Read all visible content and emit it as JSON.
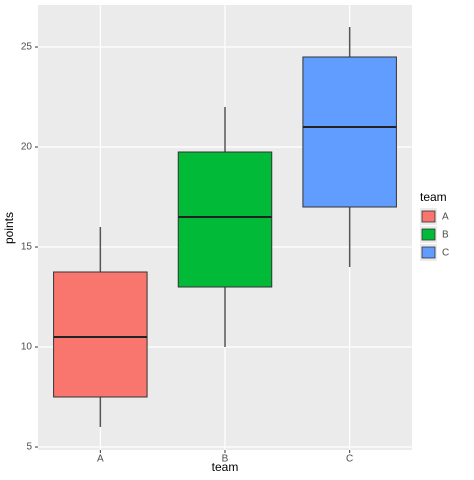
{
  "chart_data": {
    "type": "box",
    "x_label": "team",
    "y_label": "points",
    "legend_title": "team",
    "categories": [
      "A",
      "B",
      "C"
    ],
    "colors": [
      "#f8766d",
      "#00ba38",
      "#619cff"
    ],
    "boxes": [
      {
        "min": 6,
        "q1": 7.5,
        "median": 10.5,
        "q3": 13.75,
        "max": 16
      },
      {
        "min": 10,
        "q1": 13,
        "median": 16.5,
        "q3": 19.75,
        "max": 22
      },
      {
        "min": 14,
        "q1": 17,
        "median": 21,
        "q3": 24.5,
        "max": 26
      }
    ],
    "ylim": [
      4.85,
      27.1
    ],
    "yticks": [
      5,
      10,
      15,
      20,
      25
    ],
    "grid": true,
    "legend": "right"
  }
}
